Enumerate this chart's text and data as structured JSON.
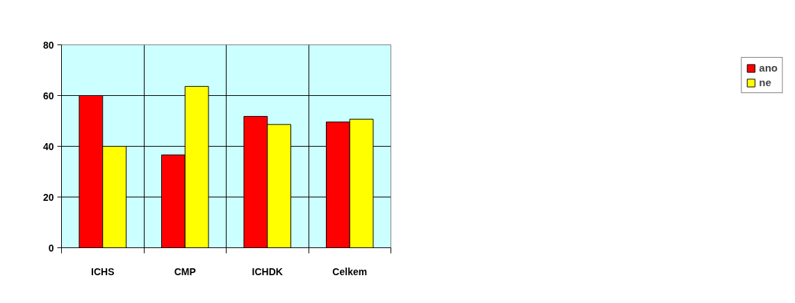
{
  "chart_data": {
    "type": "bar",
    "categories": [
      "ICHS",
      "CMP",
      "ICHDK",
      "Celkem"
    ],
    "series": [
      {
        "name": "ano",
        "color": "#ff0000",
        "values": [
          60,
          36.6,
          51.8,
          49.6
        ]
      },
      {
        "name": "ne",
        "color": "#ffff00",
        "values": [
          40,
          63.6,
          48.6,
          50.7
        ]
      }
    ],
    "ylim": [
      0,
      80
    ],
    "yticks": [
      0,
      20,
      40,
      60,
      80
    ],
    "grid": true,
    "legend": "right"
  }
}
